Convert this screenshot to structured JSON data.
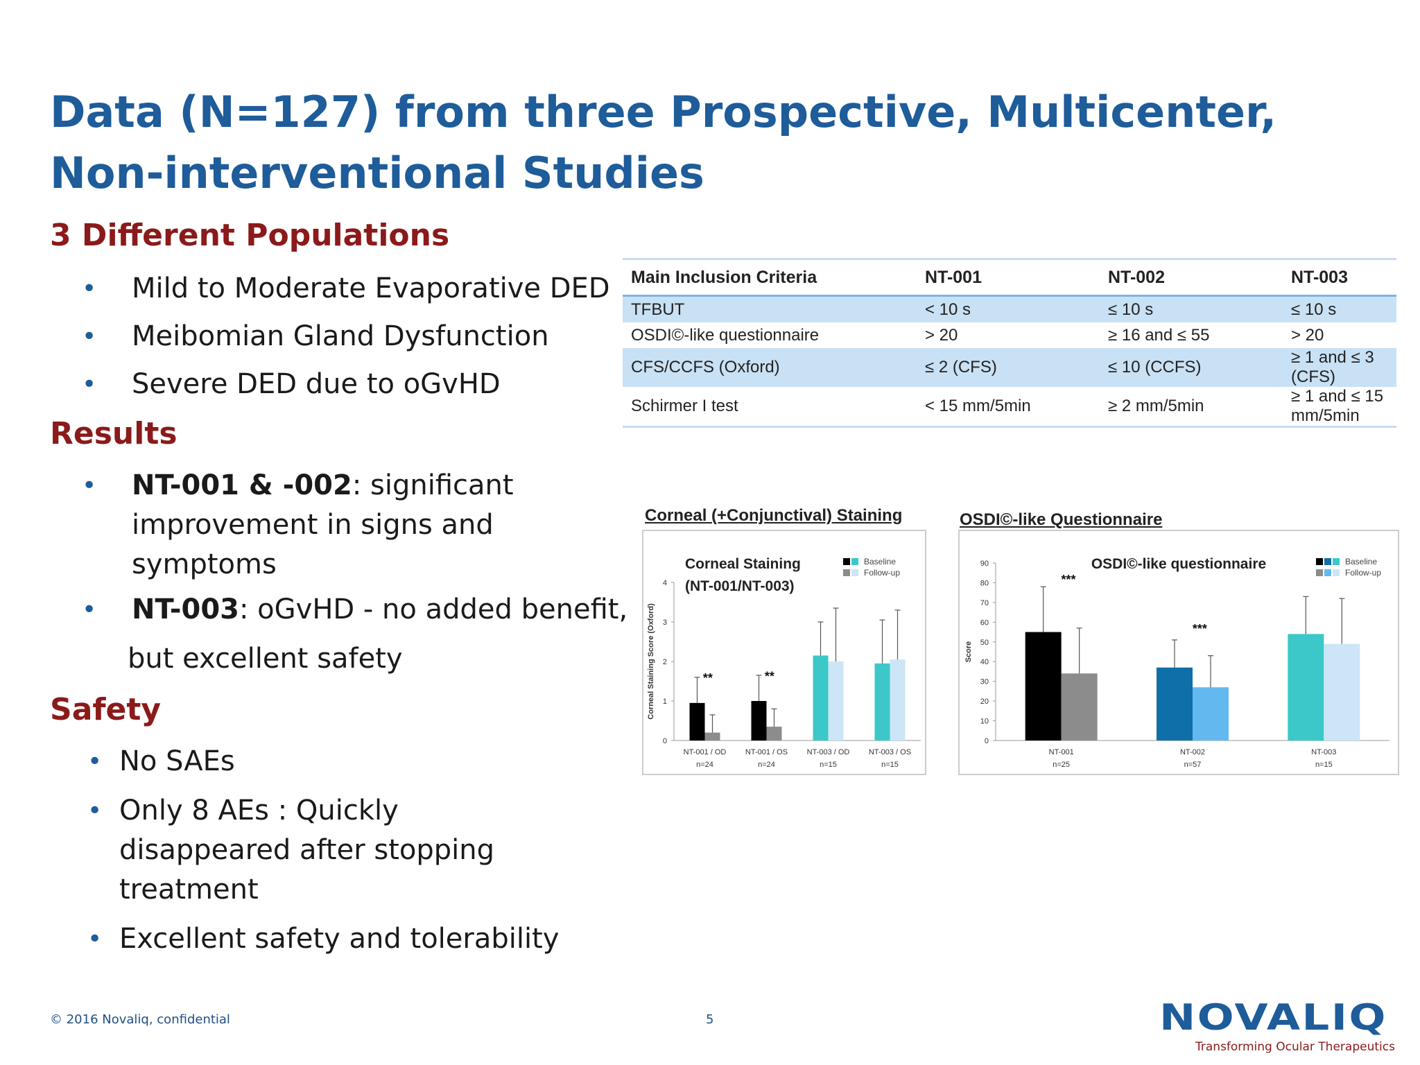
{
  "title": "Data (N=127) from three Prospective, Multicenter, Non-interventional Studies",
  "sections": {
    "populations": {
      "heading": "3 Different Populations",
      "items": [
        "Mild to Moderate Evaporative DED",
        "Meibomian Gland Dysfunction",
        "Severe DED due to oGvHD"
      ]
    },
    "results": {
      "heading": "Results",
      "item1_bold": "NT-001 & -002",
      "item1_rest": ": significant improvement in signs and symptoms",
      "item2_bold": "NT-003",
      "item2_rest": ": oGvHD - no added benefit,",
      "item2_cont": "but excellent safety"
    },
    "safety": {
      "heading": "Safety",
      "items": [
        "No SAEs",
        "Only 8 AEs : Quickly disappeared after stopping treatment",
        "Excellent safety and tolerability"
      ]
    }
  },
  "criteria_table": {
    "headers": [
      "Main Inclusion Criteria",
      "NT-001",
      "NT-002",
      "NT-003"
    ],
    "rows": [
      [
        "TFBUT",
        "< 10 s",
        "≤ 10 s",
        "≤ 10 s"
      ],
      [
        "OSDI©-like questionnaire",
        "> 20",
        "≥ 16 and ≤ 55",
        "> 20"
      ],
      [
        "CFS/CCFS (Oxford)",
        "≤ 2 (CFS)",
        "≤ 10 (CCFS)",
        "≥ 1 and ≤ 3 (CFS)"
      ],
      [
        "Schirmer I test",
        "< 15 mm/5min",
        "≥ 2 mm/5min",
        "≥ 1 and ≤ 15 mm/5min"
      ]
    ]
  },
  "chart_data": [
    {
      "type": "bar",
      "heading": "Corneal (+Conjunctival) Staining",
      "title": "Corneal Staining",
      "subtitle": "(NT-001/NT-003)",
      "ylabel": "Corneal Staining Score (Oxford)",
      "ylim": [
        0,
        4
      ],
      "yticks": [
        "0",
        "1",
        "2",
        "3",
        "4"
      ],
      "legend": [
        "Baseline",
        "Follow-up"
      ],
      "legend_position": "top-right",
      "categories": [
        "NT-001 / OD",
        "NT-001 / OS",
        "NT-003 / OD",
        "NT-003 / OS"
      ],
      "category_n": [
        "n=24",
        "n=24",
        "n=15",
        "n=15"
      ],
      "series": [
        {
          "name": "Baseline",
          "values": [
            0.95,
            1.0,
            2.15,
            1.95
          ],
          "errors": [
            0.65,
            0.65,
            0.85,
            1.1
          ]
        },
        {
          "name": "Follow-up",
          "values": [
            0.2,
            0.35,
            2.0,
            2.05
          ],
          "errors": [
            0.45,
            0.45,
            1.35,
            1.25
          ]
        }
      ],
      "colors": {
        "Baseline": [
          "#000000",
          "#000000",
          "#3cc8c8",
          "#3cc8c8"
        ],
        "Follow-up": [
          "#8c8c8c",
          "#8c8c8c",
          "#cce6f7",
          "#cce6f7"
        ]
      },
      "annotations": [
        "**",
        "**",
        "",
        ""
      ]
    },
    {
      "type": "bar",
      "heading": "OSDI©-like Questionnaire",
      "title": "OSDI©-like questionnaire",
      "ylabel": "Score",
      "ylim": [
        0,
        90
      ],
      "yticks": [
        "0",
        "10",
        "20",
        "30",
        "40",
        "50",
        "60",
        "70",
        "80",
        "90"
      ],
      "legend": [
        "Baseline",
        "Follow-up"
      ],
      "legend_position": "top-right",
      "categories": [
        "NT-001",
        "NT-002",
        "NT-003"
      ],
      "category_n": [
        "n=25",
        "n=57",
        "n=15"
      ],
      "series": [
        {
          "name": "Baseline",
          "values": [
            55,
            37,
            54
          ],
          "errors": [
            23,
            14,
            19
          ]
        },
        {
          "name": "Follow-up",
          "values": [
            34,
            27,
            49
          ],
          "errors": [
            23,
            16,
            23
          ]
        }
      ],
      "colors": {
        "Baseline": [
          "#000000",
          "#0f6fa8",
          "#3cc8c8"
        ],
        "Follow-up": [
          "#8c8c8c",
          "#64b8f0",
          "#cce6f7"
        ]
      },
      "annotations": [
        "***",
        "***",
        ""
      ]
    }
  ],
  "footer": {
    "copyright": "© 2016 Novaliq, confidential",
    "page": "5",
    "logo_text": "NOVALIQ",
    "tagline": "Transforming Ocular Therapeutics"
  }
}
